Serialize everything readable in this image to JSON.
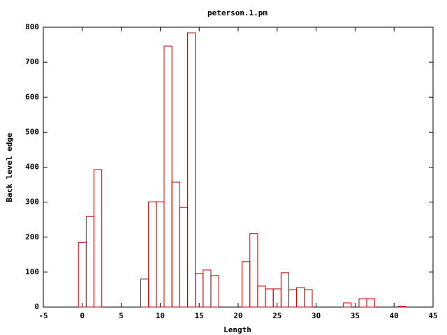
{
  "chart_data": {
    "type": "bar",
    "title": "peterson.1.pm",
    "x_label": "Length",
    "y_label": "Back level edge",
    "x": [
      0,
      1,
      2,
      8,
      9,
      10,
      11,
      12,
      13,
      14,
      15,
      16,
      17,
      21,
      22,
      23,
      24,
      25,
      26,
      27,
      28,
      29,
      34,
      36,
      37,
      41
    ],
    "values": [
      185,
      259,
      393,
      80,
      301,
      301,
      746,
      357,
      285,
      784,
      96,
      106,
      90,
      130,
      210,
      60,
      52,
      52,
      98,
      50,
      56,
      50,
      12,
      24,
      24,
      2
    ],
    "color": "#c00000",
    "xlim": [
      -5,
      45
    ],
    "xticks": [
      -5,
      0,
      5,
      10,
      15,
      20,
      25,
      30,
      35,
      40,
      45
    ],
    "ylim": [
      0,
      800
    ],
    "yticks": [
      0,
      100,
      200,
      300,
      400,
      500,
      600,
      700,
      800
    ]
  }
}
